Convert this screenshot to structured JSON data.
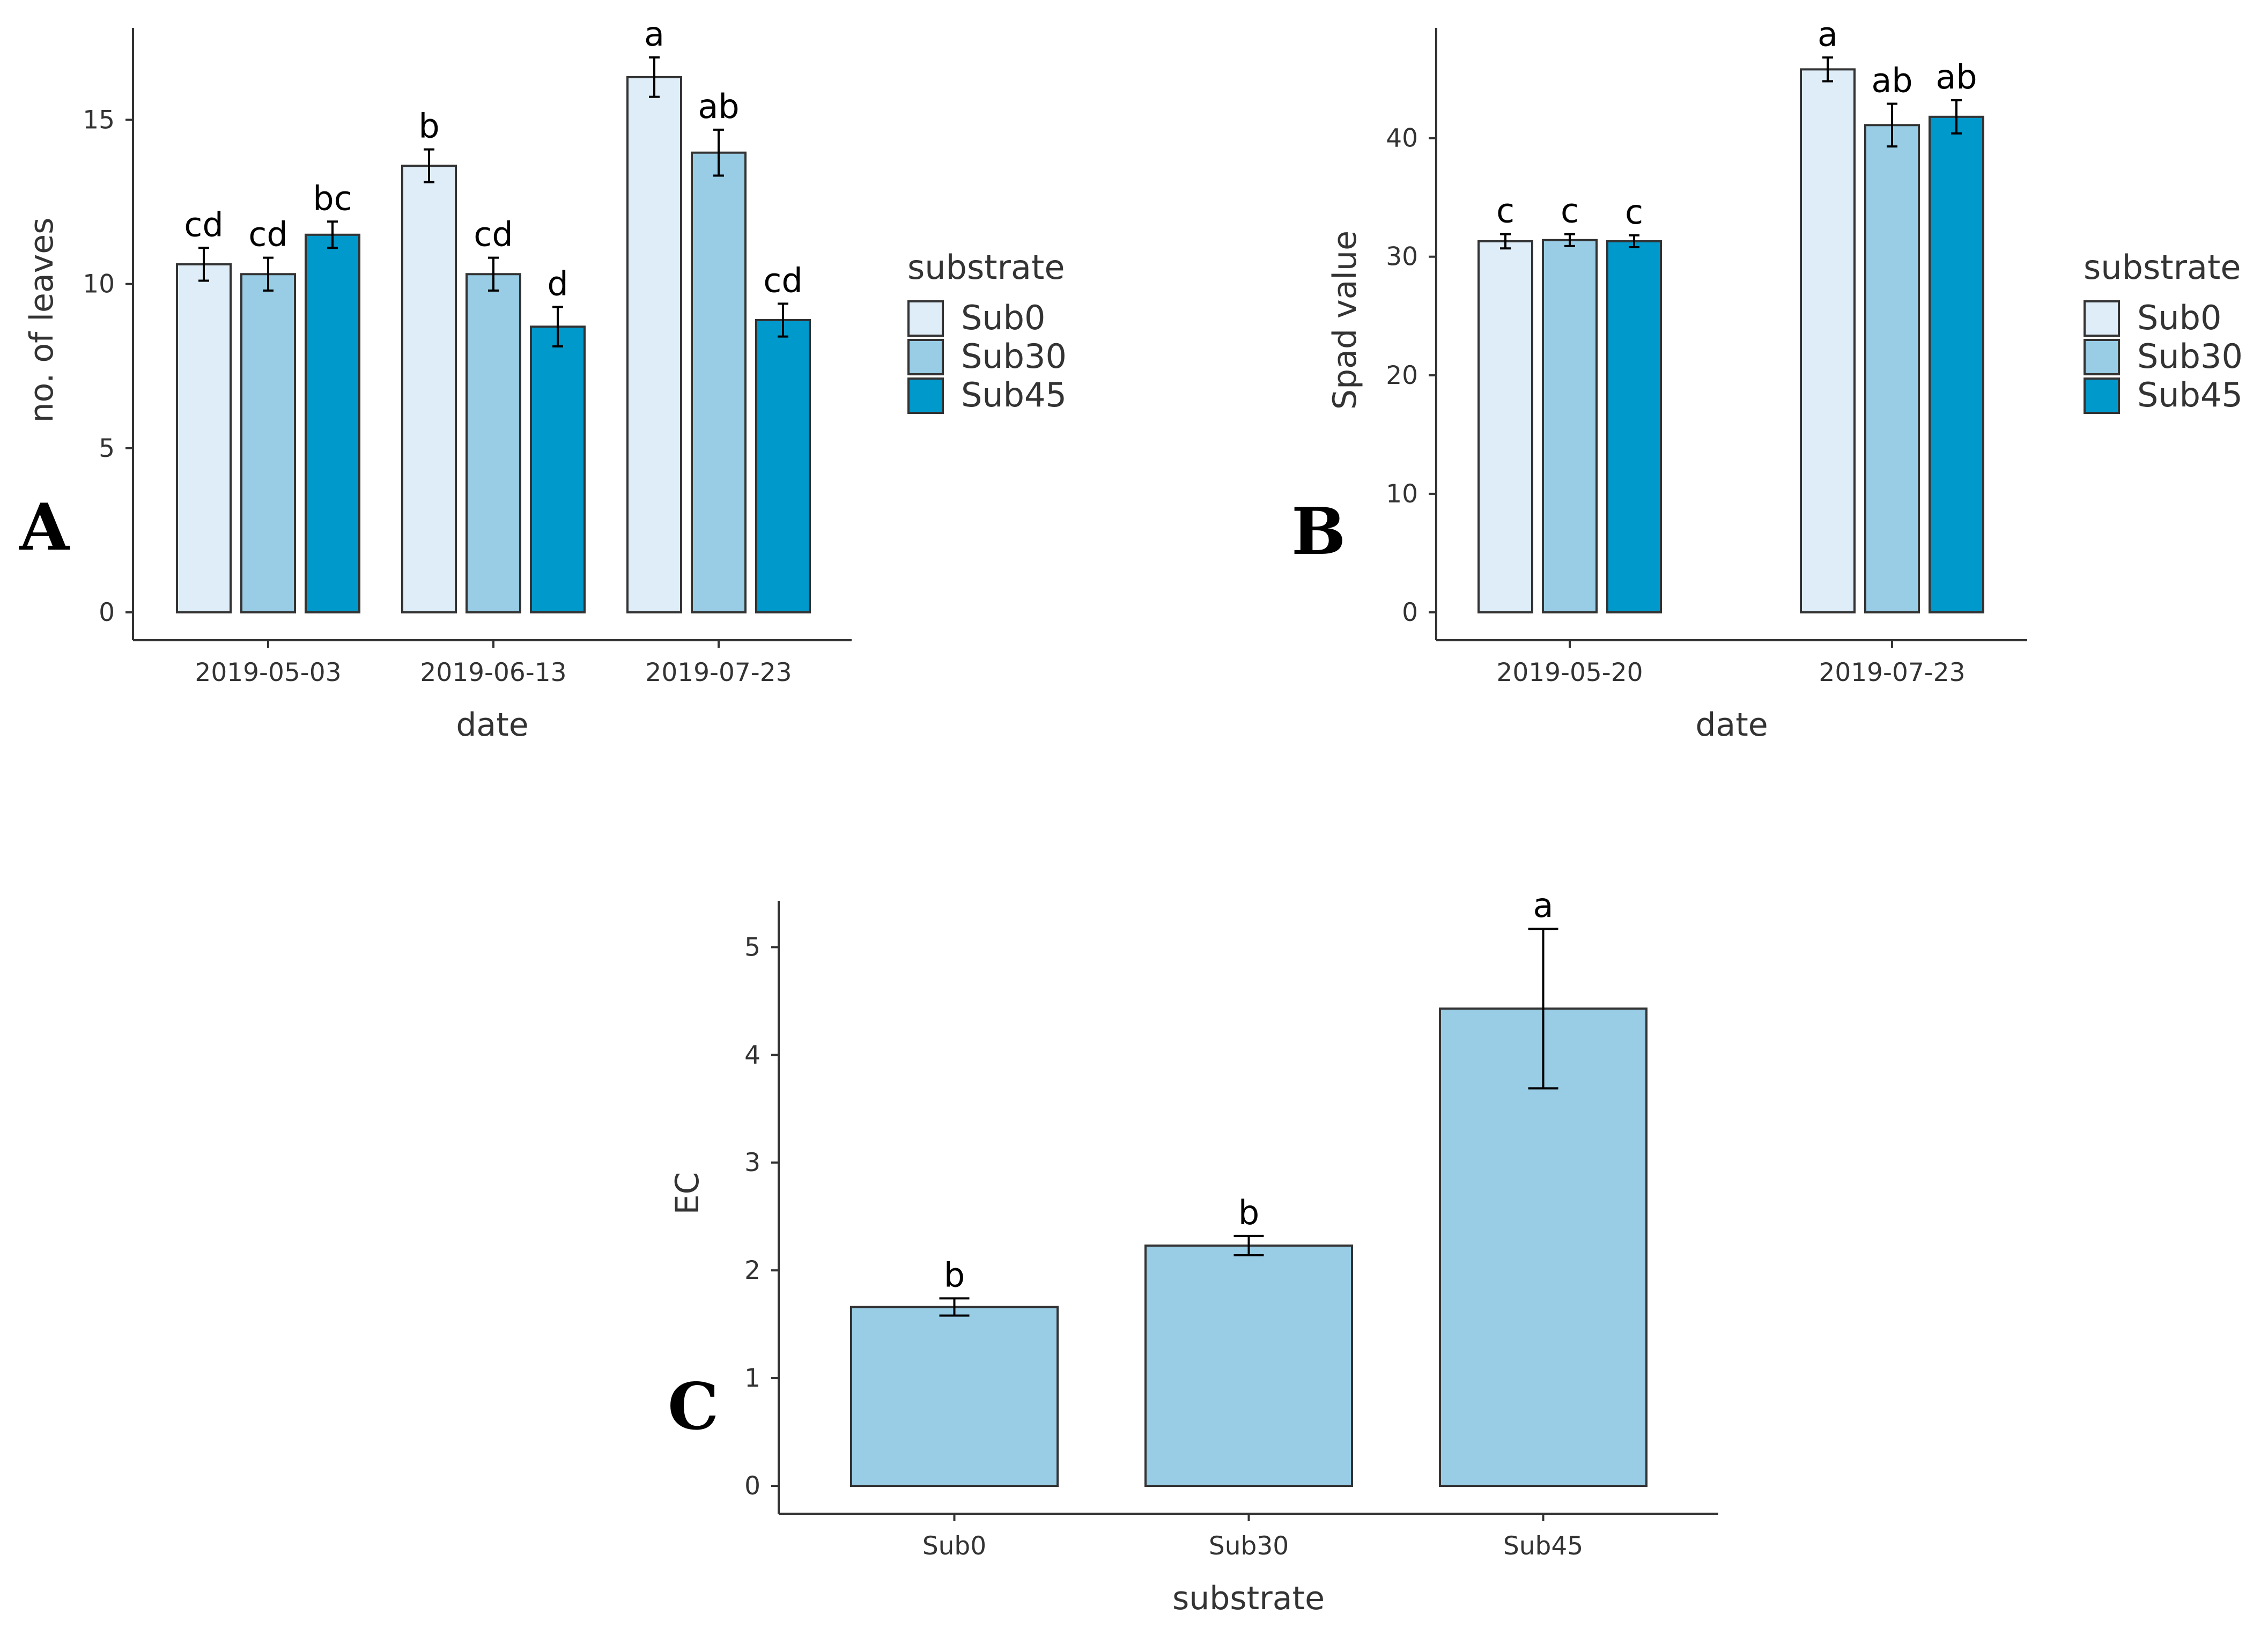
{
  "colors": {
    "Sub0": "#deedf8",
    "Sub30": "#98cde5",
    "Sub45": "#0099cc",
    "single": "#98cde5",
    "axis": "#333333",
    "bar_outline": "#333333",
    "errorbar": "#000000"
  },
  "chart_data": [
    {
      "panel": "A",
      "type": "bar",
      "grouped": true,
      "categories": [
        "2019-05-03",
        "2019-06-13",
        "2019-07-23"
      ],
      "series": [
        {
          "name": "Sub0",
          "values": [
            10.6,
            13.6,
            16.3
          ],
          "error": [
            0.5,
            0.5,
            0.6
          ],
          "labels": [
            "cd",
            "b",
            "a"
          ]
        },
        {
          "name": "Sub30",
          "values": [
            10.3,
            10.3,
            14.0
          ],
          "error": [
            0.5,
            0.5,
            0.7
          ],
          "labels": [
            "cd",
            "cd",
            "ab"
          ]
        },
        {
          "name": "Sub45",
          "values": [
            11.5,
            8.7,
            8.9
          ],
          "error": [
            0.4,
            0.6,
            0.5
          ],
          "labels": [
            "bc",
            "d",
            "cd"
          ]
        }
      ],
      "xlabel": "date",
      "ylabel": "no. of leaves",
      "ylim": [
        0,
        17.8
      ],
      "yticks": [
        0,
        5,
        10,
        15
      ],
      "grid": false,
      "legend": {
        "title": "substrate",
        "position": "right",
        "entries": [
          "Sub0",
          "Sub30",
          "Sub45"
        ]
      }
    },
    {
      "panel": "B",
      "type": "bar",
      "grouped": true,
      "categories": [
        "2019-05-20",
        "2019-07-23"
      ],
      "series": [
        {
          "name": "Sub0",
          "values": [
            31.3,
            45.8
          ],
          "error": [
            0.6,
            1.0
          ],
          "labels": [
            "c",
            "a"
          ]
        },
        {
          "name": "Sub30",
          "values": [
            31.4,
            41.1
          ],
          "error": [
            0.5,
            1.8
          ],
          "labels": [
            "c",
            "ab"
          ]
        },
        {
          "name": "Sub45",
          "values": [
            31.3,
            41.8
          ],
          "error": [
            0.5,
            1.4
          ],
          "labels": [
            "c",
            "ab"
          ]
        }
      ],
      "xlabel": "date",
      "ylabel": "Spad value",
      "ylim": [
        0,
        49.3
      ],
      "yticks": [
        0,
        10,
        20,
        30,
        40
      ],
      "grid": false,
      "legend": {
        "title": "substrate",
        "position": "right",
        "entries": [
          "Sub0",
          "Sub30",
          "Sub45"
        ]
      }
    },
    {
      "panel": "C",
      "type": "bar",
      "grouped": false,
      "categories": [
        "Sub0",
        "Sub30",
        "Sub45"
      ],
      "values": [
        1.66,
        2.23,
        4.43
      ],
      "error": [
        0.08,
        0.09,
        0.74
      ],
      "labels": [
        "b",
        "b",
        "a"
      ],
      "xlabel": "substrate",
      "ylabel": "EC",
      "ylim": [
        0,
        5.43
      ],
      "yticks": [
        0,
        1,
        2,
        3,
        4,
        5
      ],
      "grid": false
    }
  ]
}
